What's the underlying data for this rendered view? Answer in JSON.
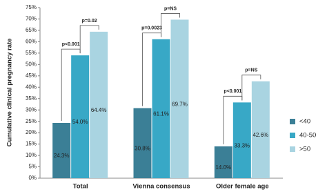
{
  "chart_data": {
    "type": "bar",
    "y_label": "Cumulative clinical pregnancy rate",
    "categories": [
      "Total",
      "Vienna consensus",
      "Older female age"
    ],
    "series": [
      {
        "name": "<40",
        "color": "#3b7f96",
        "values": [
          24.3,
          30.8,
          14.0
        ],
        "value_labels": [
          "24.3%",
          "30.8%",
          "14.0%"
        ]
      },
      {
        "name": "40-50",
        "color": "#38a8c6",
        "values": [
          54.0,
          61.1,
          33.3
        ],
        "value_labels": [
          "54.0%",
          "61.1%",
          "33.3%"
        ]
      },
      {
        "name": ">50",
        "color": "#a9d4e1",
        "values": [
          64.4,
          69.7,
          42.6
        ],
        "value_labels": [
          "64.4%",
          "69.7%",
          "42.6%"
        ]
      }
    ],
    "annotations": [
      [
        "p<0.001",
        "p=0.02"
      ],
      [
        "p=0.0023",
        "p=NS"
      ],
      [
        "p<0.001",
        "p=NS"
      ]
    ],
    "ylim": [
      0,
      75
    ],
    "yticks": [
      {
        "value": 0,
        "label": "0%"
      },
      {
        "value": 5,
        "label": "5%"
      },
      {
        "value": 10,
        "label": "10%"
      },
      {
        "value": 15,
        "label": "15%"
      },
      {
        "value": 20,
        "label": "20%"
      },
      {
        "value": 25,
        "label": "25%"
      },
      {
        "value": 30,
        "label": "30%"
      },
      {
        "value": 35,
        "label": "35%"
      },
      {
        "value": 40,
        "label": "40%"
      },
      {
        "value": 45,
        "label": "45%"
      },
      {
        "value": 50,
        "label": "50%"
      },
      {
        "value": 55,
        "label": "55%"
      },
      {
        "value": 60,
        "label": "60%"
      },
      {
        "value": 65,
        "label": "65%"
      },
      {
        "value": 70,
        "label": "70%"
      },
      {
        "value": 75,
        "label": "75%"
      }
    ],
    "legend": "right"
  }
}
